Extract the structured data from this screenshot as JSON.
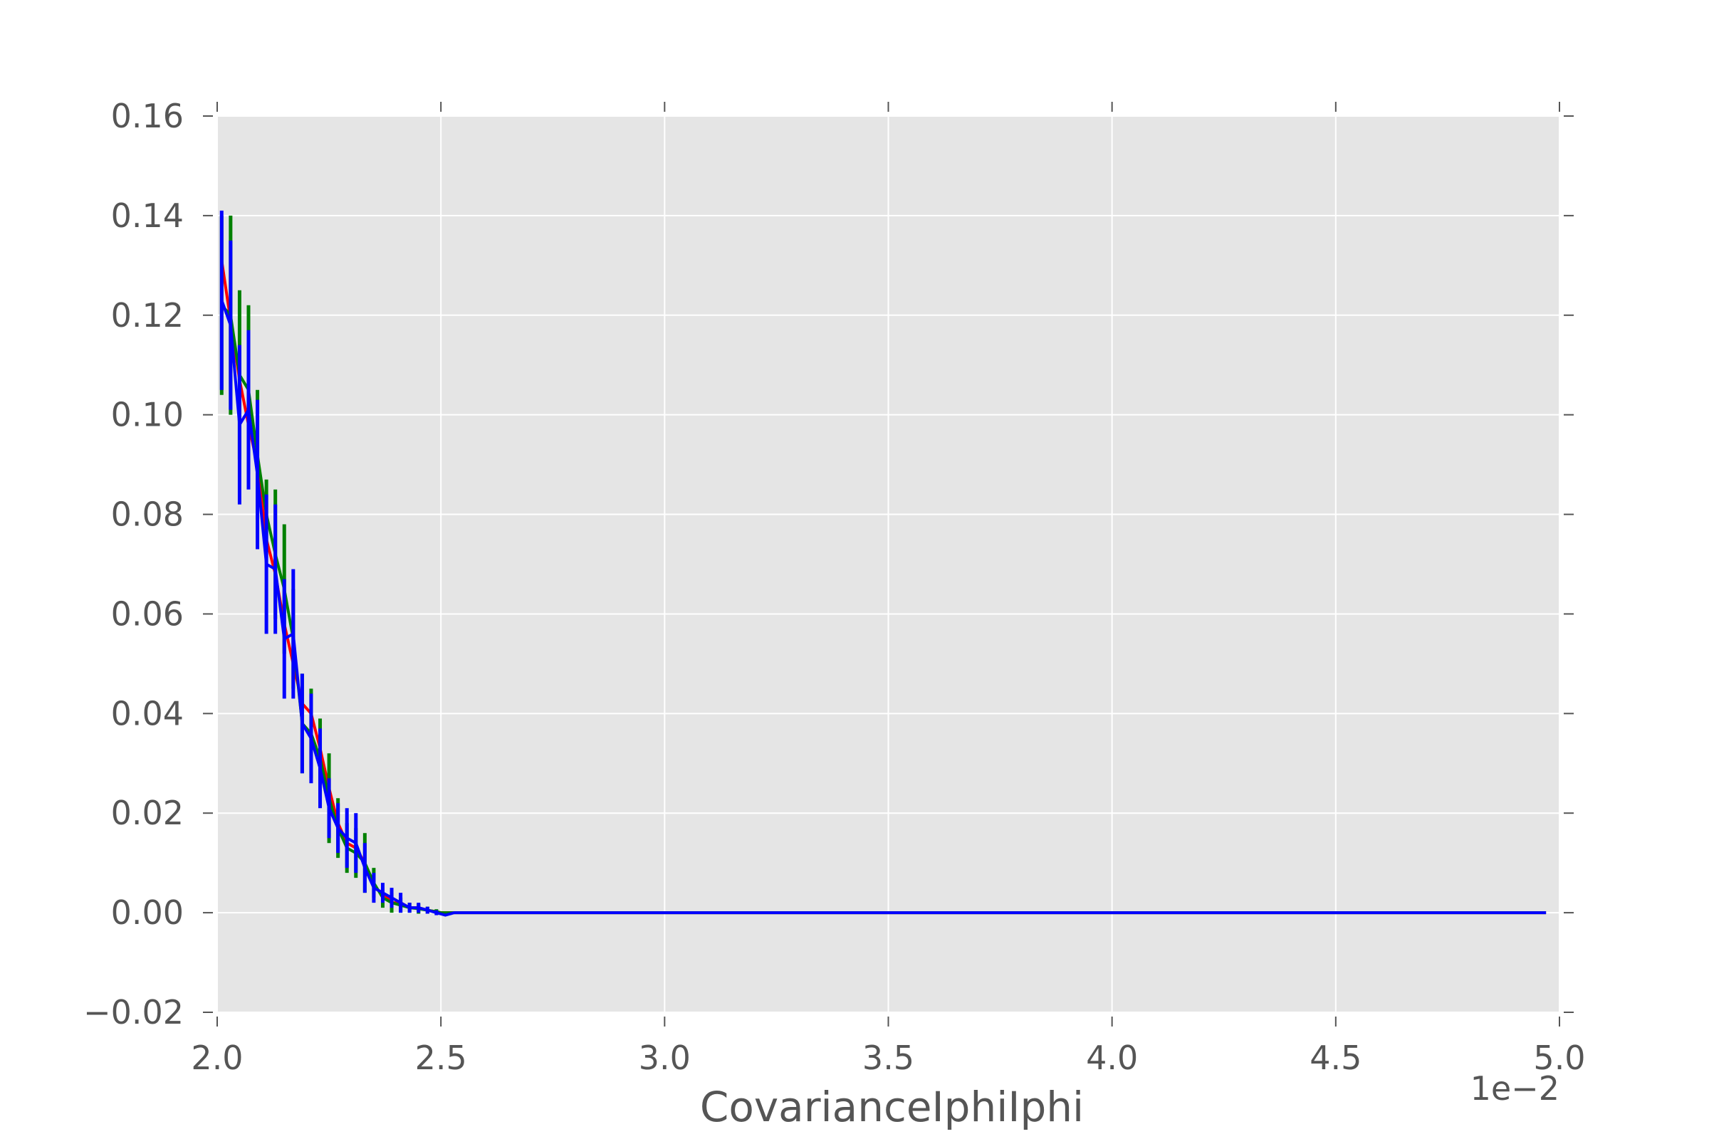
{
  "chart_data": {
    "type": "line",
    "title": "",
    "xlabel": "CovarianceIphiIphi",
    "x_offset_text": "1e−2",
    "ylabel": "",
    "xlim": [
      2.0,
      5.0
    ],
    "ylim": [
      -0.02,
      0.16
    ],
    "xticks": [
      2.0,
      2.5,
      3.0,
      3.5,
      4.0,
      4.5,
      5.0
    ],
    "xtick_labels": [
      "2.0",
      "2.5",
      "3.0",
      "3.5",
      "4.0",
      "4.5",
      "5.0"
    ],
    "yticks": [
      -0.02,
      0.0,
      0.02,
      0.04,
      0.06,
      0.08,
      0.1,
      0.12,
      0.14,
      0.16
    ],
    "ytick_labels": [
      "−0.02",
      "0.00",
      "0.02",
      "0.04",
      "0.06",
      "0.08",
      "0.10",
      "0.12",
      "0.14",
      "0.16"
    ],
    "grid": true,
    "background": "#e5e5e5",
    "colors": {
      "grid": "#ffffff",
      "text": "#555555"
    },
    "series": [
      {
        "color": "#ff0000",
        "x": [
          2.01,
          2.03,
          2.05,
          2.07,
          2.09,
          2.11,
          2.13,
          2.15,
          2.17,
          2.19,
          2.21,
          2.23,
          2.25,
          2.27,
          2.29,
          2.31,
          2.33,
          2.35,
          2.37,
          2.39,
          2.41,
          2.43,
          2.45,
          2.47,
          2.49,
          2.5,
          2.55,
          2.6,
          3.0,
          3.5,
          4.0,
          4.5,
          4.97
        ],
        "y": [
          0.131,
          0.119,
          0.107,
          0.098,
          0.09,
          0.075,
          0.068,
          0.058,
          0.05,
          0.042,
          0.04,
          0.033,
          0.025,
          0.018,
          0.014,
          0.013,
          0.01,
          0.005,
          0.004,
          0.002,
          0.002,
          0.001,
          0.001,
          0.0005,
          0.0002,
          0.0,
          0.0,
          0.0,
          0.0,
          0.0,
          0.0,
          0.0,
          0.0
        ],
        "err": [],
        "stroke": 4
      },
      {
        "color": "#008000",
        "x": [
          2.01,
          2.03,
          2.05,
          2.07,
          2.09,
          2.11,
          2.13,
          2.15,
          2.17,
          2.19,
          2.21,
          2.23,
          2.25,
          2.27,
          2.29,
          2.31,
          2.33,
          2.35,
          2.37,
          2.39,
          2.41,
          2.43,
          2.45,
          2.47,
          2.49,
          2.5,
          2.55,
          2.6,
          3.0,
          3.5,
          4.0,
          4.5,
          4.97
        ],
        "y": [
          0.122,
          0.12,
          0.108,
          0.105,
          0.092,
          0.08,
          0.072,
          0.065,
          0.055,
          0.038,
          0.036,
          0.031,
          0.023,
          0.017,
          0.013,
          0.012,
          0.01,
          0.006,
          0.003,
          0.002,
          0.0015,
          0.001,
          0.0008,
          0.0005,
          0.0002,
          0.0,
          0.0,
          0.0,
          0.0,
          0.0,
          0.0,
          0.0,
          0.0
        ],
        "err": [
          0.018,
          0.02,
          0.017,
          0.017,
          0.013,
          0.007,
          0.013,
          0.013,
          0.01,
          0.01,
          0.009,
          0.008,
          0.009,
          0.006,
          0.005,
          0.005,
          0.006,
          0.003,
          0.002,
          0.002,
          0.0015,
          0.001,
          0.001,
          0.0007,
          0.0005,
          0,
          0,
          0,
          0,
          0,
          0,
          0,
          0
        ],
        "stroke": 4
      },
      {
        "color": "#0000ff",
        "x": [
          2.01,
          2.03,
          2.05,
          2.07,
          2.09,
          2.11,
          2.13,
          2.15,
          2.17,
          2.19,
          2.21,
          2.23,
          2.25,
          2.27,
          2.29,
          2.31,
          2.33,
          2.35,
          2.37,
          2.39,
          2.41,
          2.43,
          2.45,
          2.47,
          2.49,
          2.51,
          2.53,
          2.6,
          3.0,
          3.5,
          4.0,
          4.5,
          4.97
        ],
        "y": [
          0.123,
          0.118,
          0.098,
          0.101,
          0.088,
          0.07,
          0.069,
          0.055,
          0.056,
          0.038,
          0.035,
          0.029,
          0.021,
          0.017,
          0.015,
          0.014,
          0.009,
          0.005,
          0.004,
          0.003,
          0.002,
          0.001,
          0.001,
          0.0005,
          0.0,
          -0.0005,
          0.0,
          0.0,
          0.0,
          0.0,
          0.0,
          0.0,
          0.0
        ],
        "err": [
          0.018,
          0.017,
          0.016,
          0.016,
          0.015,
          0.014,
          0.013,
          0.012,
          0.013,
          0.01,
          0.009,
          0.008,
          0.006,
          0.005,
          0.006,
          0.006,
          0.005,
          0.003,
          0.002,
          0.002,
          0.002,
          0.001,
          0.001,
          0.0007,
          0.0005,
          0,
          0,
          0,
          0,
          0,
          0,
          0,
          0
        ],
        "stroke": 4
      }
    ]
  }
}
